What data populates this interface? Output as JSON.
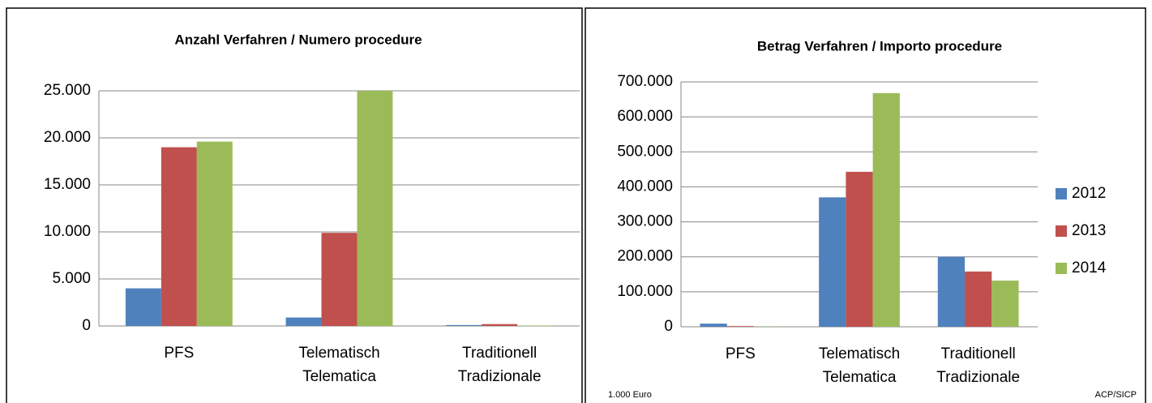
{
  "chart_data": [
    {
      "type": "bar",
      "title": "Anzahl Verfahren / Numero procedure",
      "categories": [
        [
          "PFS"
        ],
        [
          "Telematisch",
          "Telematica"
        ],
        [
          "Traditionell",
          "Tradizionale"
        ]
      ],
      "series": [
        {
          "name": "2012",
          "color": "#4f81bd",
          "values": [
            4000,
            900,
            100
          ]
        },
        {
          "name": "2013",
          "color": "#c0504d",
          "values": [
            19000,
            9900,
            200
          ]
        },
        {
          "name": "2014",
          "color": "#9bbb59",
          "values": [
            19600,
            25000,
            50
          ]
        }
      ],
      "ylim": [
        0,
        25000
      ],
      "yticks": [
        0,
        {
          "value": 5000,
          "label": "5.000"
        },
        {
          "value": 10000,
          "label": "10.000"
        },
        {
          "value": 15000,
          "label": "15.000"
        },
        {
          "value": 20000,
          "label": "20.000"
        },
        {
          "value": 25000,
          "label": "25.000"
        }
      ],
      "grid": true,
      "legend": false
    },
    {
      "type": "bar",
      "title": "Betrag Verfahren / Importo procedure",
      "categories": [
        [
          "PFS"
        ],
        [
          "Telematisch",
          "Telematica"
        ],
        [
          "Traditionell",
          "Tradizionale"
        ]
      ],
      "series": [
        {
          "name": "2012",
          "color": "#4f81bd",
          "values": [
            9000,
            370000,
            200000
          ]
        },
        {
          "name": "2013",
          "color": "#c0504d",
          "values": [
            2000,
            443000,
            158000
          ]
        },
        {
          "name": "2014",
          "color": "#9bbb59",
          "values": [
            500,
            668000,
            132000
          ]
        }
      ],
      "ylim": [
        0,
        700000
      ],
      "yticks": [
        0,
        {
          "value": 100000,
          "label": "100.000"
        },
        {
          "value": 200000,
          "label": "200.000"
        },
        {
          "value": 300000,
          "label": "300.000"
        },
        {
          "value": 400000,
          "label": "400.000"
        },
        {
          "value": 500000,
          "label": "500.000"
        },
        {
          "value": 600000,
          "label": "600.000"
        },
        {
          "value": 700000,
          "label": "700.000"
        }
      ],
      "grid": true,
      "legend": "right",
      "unit_label": "1.000 Euro",
      "source": "ACP/SICP"
    }
  ]
}
